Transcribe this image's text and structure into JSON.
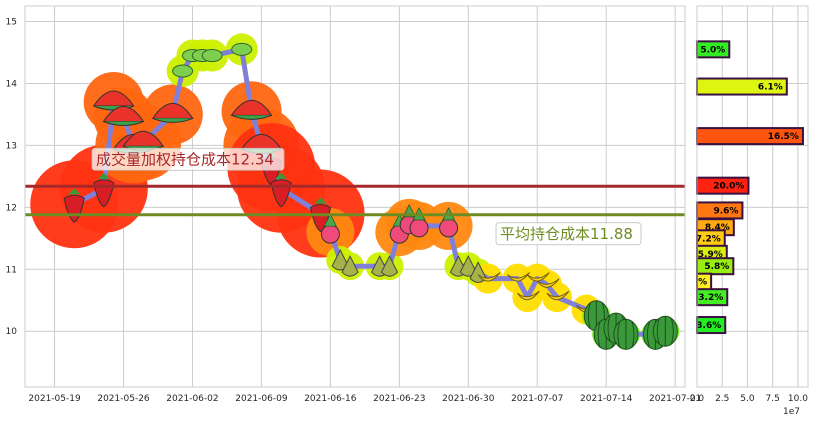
{
  "chart_data": [
    {
      "type": "line",
      "x": [
        "2021-05-21",
        "2021-05-24",
        "2021-05-25",
        "2021-05-26",
        "2021-05-27",
        "2021-05-28",
        "2021-05-31",
        "2021-06-01",
        "2021-06-02",
        "2021-06-03",
        "2021-06-04",
        "2021-06-07",
        "2021-06-08",
        "2021-06-09",
        "2021-06-10",
        "2021-06-11",
        "2021-06-15",
        "2021-06-16",
        "2021-06-17",
        "2021-06-18",
        "2021-06-21",
        "2021-06-22",
        "2021-06-23",
        "2021-06-24",
        "2021-06-25",
        "2021-06-28",
        "2021-06-29",
        "2021-06-30",
        "2021-07-01",
        "2021-07-02",
        "2021-07-05",
        "2021-07-06",
        "2021-07-07",
        "2021-07-08",
        "2021-07-09",
        "2021-07-12",
        "2021-07-13",
        "2021-07-14",
        "2021-07-15",
        "2021-07-16",
        "2021-07-19",
        "2021-07-20"
      ],
      "y": [
        12.05,
        12.3,
        13.7,
        13.45,
        13.0,
        13.05,
        13.5,
        14.2,
        14.45,
        14.45,
        14.45,
        14.55,
        13.55,
        13.0,
        12.65,
        12.3,
        11.9,
        11.6,
        11.15,
        11.05,
        11.05,
        11.05,
        11.6,
        11.75,
        11.7,
        11.7,
        11.05,
        11.05,
        10.95,
        10.85,
        10.85,
        10.55,
        10.85,
        10.75,
        10.55,
        10.35,
        10.25,
        9.95,
        10.05,
        9.95,
        9.95,
        10.0
      ],
      "ylim": [
        9.1,
        15.25
      ],
      "yticks": [
        "10",
        "11",
        "12",
        "13",
        "14",
        "15"
      ],
      "xticks": [
        "2021-05-19",
        "2021-05-26",
        "2021-06-02",
        "2021-06-09",
        "2021-06-16",
        "2021-06-23",
        "2021-06-30",
        "2021-07-07",
        "2021-07-14",
        "2021-07-21"
      ],
      "hlines": [
        {
          "value": 12.34,
          "label": "成交量加权持仓成本12.34",
          "color": "#a6282a"
        },
        {
          "value": 11.88,
          "label": "平均持仓成本11.88",
          "color": "#6e8c22"
        }
      ],
      "line_color": "#8080d8",
      "grid": true
    },
    {
      "type": "bar",
      "orientation": "horizontal",
      "xlim": [
        0,
        11000000.0
      ],
      "xticks": [
        "0.0",
        "2.5",
        "5.0",
        "7.5",
        "10.0"
      ],
      "offset_label": "1e7",
      "bars": [
        {
          "y": 14.55,
          "value": 3200000,
          "label": "5.0%",
          "color": "#33ee22"
        },
        {
          "y": 13.95,
          "value": 8900000,
          "label": "6.1%",
          "color": "#ddf511"
        },
        {
          "y": 13.15,
          "value": 10500000,
          "label": "16.5%",
          "color": "#ff5511"
        },
        {
          "y": 12.35,
          "value": 5100000,
          "label": "20.0%",
          "color": "#ff2211"
        },
        {
          "y": 11.95,
          "value": 4500000,
          "label": "9.6%",
          "color": "#ff7711"
        },
        {
          "y": 11.68,
          "value": 3650000,
          "label": "8.4%",
          "color": "#ffaa11"
        },
        {
          "y": 11.5,
          "value": 2750000,
          "label": "7.2%",
          "color": "#ffcc11"
        },
        {
          "y": 11.25,
          "value": 2950000,
          "label": "5.9%",
          "color": "#dded11"
        },
        {
          "y": 11.05,
          "value": 3600000,
          "label": "5.8%",
          "color": "#99ee11"
        },
        {
          "y": 10.8,
          "value": 1400000,
          "label": "%",
          "color": "#ffee22"
        },
        {
          "y": 10.55,
          "value": 3000000,
          "label": "3.2%",
          "color": "#44ee22"
        },
        {
          "y": 10.1,
          "value": 2800000,
          "label": "3.6%",
          "color": "#22ee22"
        }
      ]
    }
  ]
}
